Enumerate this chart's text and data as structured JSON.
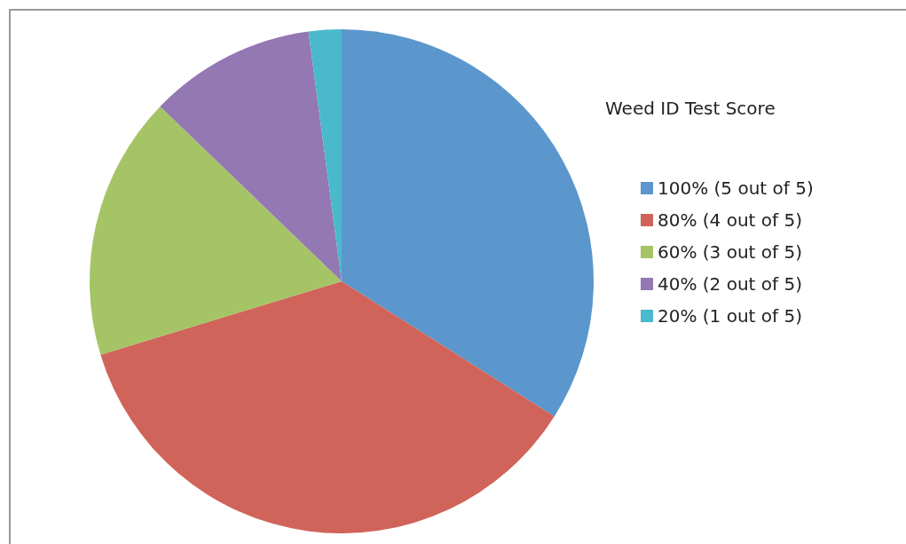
{
  "chart_data": {
    "type": "pie",
    "legend_title": "Weed ID Test Score",
    "categories": [
      "100% (5 out of 5)",
      "80% (4 out of 5)",
      "60% (3 out of 5)",
      "40% (2 out of 5)",
      "20% (1 out of 5)"
    ],
    "values": [
      34,
      36.3,
      16.9,
      10.7,
      2.1
    ],
    "colors": [
      "#5b96cc",
      "#d0645a",
      "#a5c465",
      "#9378b3",
      "#4bb9cc"
    ],
    "legend": "right"
  }
}
